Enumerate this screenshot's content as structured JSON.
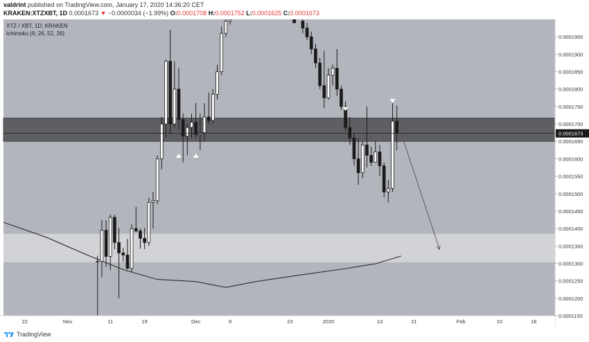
{
  "header": {
    "publisher": "valdrint",
    "published_text": "published on TradingView.com, January 17, 2020 14:36:20 CET",
    "symbol_line": "KRAKEN:XTZXBT, 1D",
    "last": "0.0001673",
    "change_arrow": "▼",
    "change": "−0.0000034 (−1.99%)",
    "open_label": "O:",
    "open": "0.0001708",
    "high_label": "H:",
    "high": "0.0001752",
    "low_label": "L:",
    "low": "0.0001625",
    "close_label": "C:",
    "close": "0.0001673"
  },
  "legend": {
    "symbol": "XTZ / XBT, 1D, KRAKEN",
    "indicator": "Ichimoku (9, 26, 52, 26)"
  },
  "price_label": "0.0001673",
  "footer": {
    "brand": "TradingView"
  },
  "colors": {
    "background": "#b3b5bd",
    "bull_candle": "#ffffff",
    "bear_candle": "#1a1a1a",
    "resistance_zone": "#5e5f63",
    "support_zone": "#d2d3d6",
    "price_label_bg": "#1a1a1a",
    "text_red": "#e53935"
  },
  "chart_data": {
    "type": "candlestick",
    "symbol": "XTZ / XBT, 1D, KRAKEN",
    "y_range": [
      0.000115,
      0.0002
    ],
    "y_ticks": [
      "0.0001950",
      "0.0001900",
      "0.0001850",
      "0.0001800",
      "0.0001750",
      "0.0001700",
      "0.0001650",
      "0.0001600",
      "0.0001550",
      "0.0001500",
      "0.0001450",
      "0.0001400",
      "0.0001350",
      "0.0001300",
      "0.0001250",
      "0.0001200",
      "0.0001150"
    ],
    "x_ticks": [
      {
        "date": "2019-10-22",
        "label": "22"
      },
      {
        "date": "2019-11-01",
        "label": "Nov"
      },
      {
        "date": "2019-11-11",
        "label": "11"
      },
      {
        "date": "2019-11-19",
        "label": "19"
      },
      {
        "date": "2019-12-01",
        "label": "Dec"
      },
      {
        "date": "2019-12-09",
        "label": "9"
      },
      {
        "date": "2019-12-23",
        "label": "23"
      },
      {
        "date": "2020-01-01",
        "label": "2020"
      },
      {
        "date": "2020-01-13",
        "label": "13"
      },
      {
        "date": "2020-01-21",
        "label": "21"
      },
      {
        "date": "2020-02-01",
        "label": "Feb"
      },
      {
        "date": "2020-02-10",
        "label": "10"
      },
      {
        "date": "2020-02-18",
        "label": "18"
      }
    ],
    "x_range": [
      "2019-10-17",
      "2020-02-23"
    ],
    "zones": [
      {
        "type": "resistance",
        "from": 0.000165,
        "to": 0.0001717
      },
      {
        "type": "support",
        "from": 0.0001303,
        "to": 0.0001385
      }
    ],
    "horizontal_line": 0.0001673,
    "arrow": {
      "from_date": "2020-01-18",
      "from_price": 0.0001673,
      "to_date": "2020-01-27",
      "to_price": 0.000134
    },
    "markers": [
      {
        "date": "2019-11-27",
        "price": 0.0001609,
        "dir": "up"
      },
      {
        "date": "2019-12-01",
        "price": 0.0001609,
        "dir": "up"
      },
      {
        "date": "2020-01-05",
        "price": 0.0001743,
        "dir": "down"
      },
      {
        "date": "2020-01-16",
        "price": 0.0001766,
        "dir": "down"
      }
    ],
    "ma_line": [
      {
        "date": "2019-10-17",
        "value": 0.0001418
      },
      {
        "date": "2019-10-27",
        "value": 0.0001375
      },
      {
        "date": "2019-11-06",
        "value": 0.0001322
      },
      {
        "date": "2019-11-14",
        "value": 0.0001282
      },
      {
        "date": "2019-11-22",
        "value": 0.0001254
      },
      {
        "date": "2019-12-01",
        "value": 0.0001248
      },
      {
        "date": "2019-12-08",
        "value": 0.0001231
      },
      {
        "date": "2019-12-15",
        "value": 0.0001248
      },
      {
        "date": "2019-12-25",
        "value": 0.0001266
      },
      {
        "date": "2020-01-05",
        "value": 0.0001285
      },
      {
        "date": "2020-01-12",
        "value": 0.0001299
      },
      {
        "date": "2020-01-18",
        "value": 0.0001321
      }
    ],
    "candles": [
      {
        "date": "2019-11-08",
        "o": 0.0001306,
        "h": 0.0001322,
        "l": 0.0001095,
        "c": 0.0001306
      },
      {
        "date": "2019-11-09",
        "o": 0.0001306,
        "h": 0.0001425,
        "l": 0.000126,
        "c": 0.0001395
      },
      {
        "date": "2019-11-10",
        "o": 0.0001395,
        "h": 0.0001424,
        "l": 0.000129,
        "c": 0.000132
      },
      {
        "date": "2019-11-11",
        "o": 0.000132,
        "h": 0.000144,
        "l": 0.000128,
        "c": 0.0001432
      },
      {
        "date": "2019-11-12",
        "o": 0.0001432,
        "h": 0.000144,
        "l": 0.000134,
        "c": 0.000136
      },
      {
        "date": "2019-11-13",
        "o": 0.000136,
        "h": 0.0001402,
        "l": 0.00012,
        "c": 0.000133
      },
      {
        "date": "2019-11-14",
        "o": 0.000133,
        "h": 0.0001345,
        "l": 0.0001305,
        "c": 0.0001324
      },
      {
        "date": "2019-11-15",
        "o": 0.0001324,
        "h": 0.000137,
        "l": 0.0001282,
        "c": 0.0001286
      },
      {
        "date": "2019-11-16",
        "o": 0.0001286,
        "h": 0.0001412,
        "l": 0.0001276,
        "c": 0.00014
      },
      {
        "date": "2019-11-17",
        "o": 0.00014,
        "h": 0.0001462,
        "l": 0.000139,
        "c": 0.0001393
      },
      {
        "date": "2019-11-18",
        "o": 0.0001393,
        "h": 0.00014,
        "l": 0.0001342,
        "c": 0.0001372
      },
      {
        "date": "2019-11-19",
        "o": 0.0001372,
        "h": 0.0001402,
        "l": 0.0001341,
        "c": 0.000136
      },
      {
        "date": "2019-11-20",
        "o": 0.000136,
        "h": 0.0001488,
        "l": 0.000135,
        "c": 0.0001475
      },
      {
        "date": "2019-11-21",
        "o": 0.0001475,
        "h": 0.0001505,
        "l": 0.00014,
        "c": 0.000148
      },
      {
        "date": "2019-11-22",
        "o": 0.000148,
        "h": 0.000161,
        "l": 0.000147,
        "c": 0.00016
      },
      {
        "date": "2019-11-23",
        "o": 0.00016,
        "h": 0.000172,
        "l": 0.000157,
        "c": 0.00017
      },
      {
        "date": "2019-11-24",
        "o": 0.00017,
        "h": 0.0001885,
        "l": 0.000166,
        "c": 0.000188
      },
      {
        "date": "2019-11-25",
        "o": 0.000188,
        "h": 0.000197,
        "l": 0.000167,
        "c": 0.00017
      },
      {
        "date": "2019-11-26",
        "o": 0.00017,
        "h": 0.000188,
        "l": 0.000169,
        "c": 0.00018
      },
      {
        "date": "2019-11-27",
        "o": 0.00018,
        "h": 0.000186,
        "l": 0.0001683,
        "c": 0.0001713
      },
      {
        "date": "2019-11-28",
        "o": 0.0001713,
        "h": 0.000173,
        "l": 0.000159,
        "c": 0.0001665
      },
      {
        "date": "2019-11-29",
        "o": 0.0001665,
        "h": 0.00017,
        "l": 0.000161,
        "c": 0.000169
      },
      {
        "date": "2019-11-30",
        "o": 0.000169,
        "h": 0.000173,
        "l": 0.000166,
        "c": 0.0001705
      },
      {
        "date": "2019-12-01",
        "o": 0.0001705,
        "h": 0.000176,
        "l": 0.000166,
        "c": 0.000167
      },
      {
        "date": "2019-12-02",
        "o": 0.000167,
        "h": 0.000173,
        "l": 0.0001625,
        "c": 0.0001675
      },
      {
        "date": "2019-12-03",
        "o": 0.0001675,
        "h": 0.000176,
        "l": 0.000165,
        "c": 0.000172
      },
      {
        "date": "2019-12-04",
        "o": 0.000172,
        "h": 0.000179,
        "l": 0.00017,
        "c": 0.000171
      },
      {
        "date": "2019-12-05",
        "o": 0.000171,
        "h": 0.00018,
        "l": 0.00017,
        "c": 0.0001785
      },
      {
        "date": "2019-12-06",
        "o": 0.0001785,
        "h": 0.000187,
        "l": 0.000177,
        "c": 0.000185
      },
      {
        "date": "2019-12-07",
        "o": 0.000185,
        "h": 0.000198,
        "l": 0.000184,
        "c": 0.000196
      },
      {
        "date": "2019-12-08",
        "o": 0.000196,
        "h": 0.0002,
        "l": 0.000195,
        "c": 0.0001995
      },
      {
        "date": "2019-12-09",
        "o": 0.0001995,
        "h": 0.0002,
        "l": 0.0001985,
        "c": 0.0002
      },
      {
        "date": "2019-12-24",
        "o": 0.0002,
        "h": 0.0002,
        "l": 0.000199,
        "c": 0.000199
      },
      {
        "date": "2019-12-26",
        "o": 0.0001995,
        "h": 0.0002,
        "l": 0.000196,
        "c": 0.0001975
      },
      {
        "date": "2019-12-27",
        "o": 0.0001975,
        "h": 0.000199,
        "l": 0.000194,
        "c": 0.000195
      },
      {
        "date": "2019-12-28",
        "o": 0.000195,
        "h": 0.0001965,
        "l": 0.00019,
        "c": 0.0001915
      },
      {
        "date": "2019-12-29",
        "o": 0.0001915,
        "h": 0.000193,
        "l": 0.000186,
        "c": 0.0001875
      },
      {
        "date": "2019-12-30",
        "o": 0.0001875,
        "h": 0.000189,
        "l": 0.00018,
        "c": 0.000181
      },
      {
        "date": "2019-12-31",
        "o": 0.000181,
        "h": 0.000191,
        "l": 0.0001745,
        "c": 0.0001775
      },
      {
        "date": "2020-01-01",
        "o": 0.0001775,
        "h": 0.000186,
        "l": 0.000177,
        "c": 0.000184
      },
      {
        "date": "2020-01-02",
        "o": 0.000184,
        "h": 0.000187,
        "l": 0.000181,
        "c": 0.000186
      },
      {
        "date": "2020-01-03",
        "o": 0.000186,
        "h": 0.0001915,
        "l": 0.000178,
        "c": 0.00018
      },
      {
        "date": "2020-01-04",
        "o": 0.00018,
        "h": 0.000181,
        "l": 0.000174,
        "c": 0.000175
      },
      {
        "date": "2020-01-05",
        "o": 0.000175,
        "h": 0.0001765,
        "l": 0.000168,
        "c": 0.000169
      },
      {
        "date": "2020-01-06",
        "o": 0.000169,
        "h": 0.000172,
        "l": 0.000164,
        "c": 0.000166
      },
      {
        "date": "2020-01-07",
        "o": 0.000166,
        "h": 0.0001675,
        "l": 0.000158,
        "c": 0.00016
      },
      {
        "date": "2020-01-08",
        "o": 0.00016,
        "h": 0.000166,
        "l": 0.0001525,
        "c": 0.000156
      },
      {
        "date": "2020-01-09",
        "o": 0.000156,
        "h": 0.000165,
        "l": 0.0001545,
        "c": 0.000164
      },
      {
        "date": "2020-01-10",
        "o": 0.000164,
        "h": 0.000175,
        "l": 0.0001575,
        "c": 0.000161
      },
      {
        "date": "2020-01-11",
        "o": 0.000161,
        "h": 0.0001635,
        "l": 0.000158,
        "c": 0.000159
      },
      {
        "date": "2020-01-12",
        "o": 0.000159,
        "h": 0.000165,
        "l": 0.000159,
        "c": 0.000162
      },
      {
        "date": "2020-01-13",
        "o": 0.000162,
        "h": 0.000164,
        "l": 0.000155,
        "c": 0.000158
      },
      {
        "date": "2020-01-14",
        "o": 0.000158,
        "h": 0.000159,
        "l": 0.000149,
        "c": 0.0001505
      },
      {
        "date": "2020-01-15",
        "o": 0.0001505,
        "h": 0.000154,
        "l": 0.0001475,
        "c": 0.0001515
      },
      {
        "date": "2020-01-16",
        "o": 0.0001515,
        "h": 0.000176,
        "l": 0.0001505,
        "c": 0.0001708
      },
      {
        "date": "2020-01-17",
        "o": 0.0001708,
        "h": 0.0001752,
        "l": 0.0001625,
        "c": 0.0001673
      }
    ]
  }
}
